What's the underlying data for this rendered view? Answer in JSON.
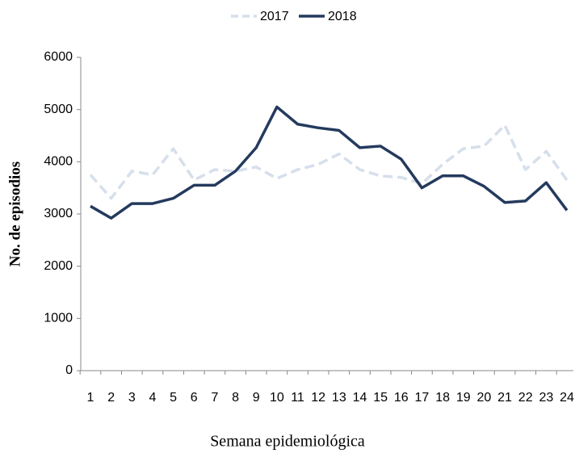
{
  "chart_data": {
    "type": "line",
    "x_label": "Semana epidemiológica",
    "y_label": "No. de episodios",
    "categories": [
      "1",
      "2",
      "3",
      "4",
      "5",
      "6",
      "7",
      "8",
      "9",
      "10",
      "11",
      "12",
      "13",
      "14",
      "15",
      "16",
      "17",
      "18",
      "19",
      "20",
      "21",
      "22",
      "23",
      "24"
    ],
    "series": [
      {
        "name": "2017",
        "color": "#d6dfeb",
        "dashed": true,
        "values": [
          3750,
          3300,
          3820,
          3750,
          4250,
          3650,
          3850,
          3820,
          3900,
          3680,
          3850,
          3950,
          4150,
          3850,
          3730,
          3700,
          3580,
          3950,
          4250,
          4300,
          4700,
          3850,
          4200,
          3650
        ]
      },
      {
        "name": "2018",
        "color": "#243a5e",
        "dashed": false,
        "values": [
          3150,
          2920,
          3200,
          3200,
          3300,
          3550,
          3550,
          3820,
          4270,
          5050,
          4720,
          4650,
          4600,
          4270,
          4300,
          4050,
          3500,
          3730,
          3730,
          3530,
          3220,
          3250,
          3600,
          3070
        ]
      }
    ],
    "ylim": [
      0,
      6000
    ],
    "yticks": [
      0,
      1000,
      2000,
      3000,
      4000,
      5000,
      6000
    ],
    "legend": "top",
    "grid": false
  }
}
